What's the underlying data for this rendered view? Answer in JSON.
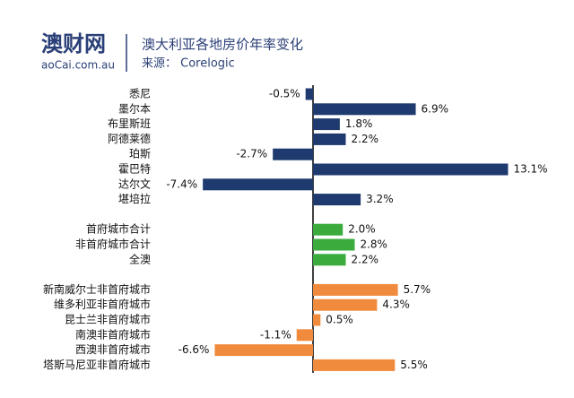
{
  "header": {
    "logo": "澳财网",
    "logo_sub": "aoCai.com.au",
    "title": "澳大利亚各地房价年率变化",
    "subtitle": "来源： Corelogic"
  },
  "chart_data": {
    "type": "bar",
    "orientation": "horizontal",
    "groups": [
      {
        "color": "#1f3a6e",
        "categories": [
          "悉尼",
          "墨尔本",
          "布里斯班",
          "阿德莱德",
          "珀斯",
          "霍巴特",
          "达尔文",
          "堪培拉"
        ],
        "values": [
          -0.5,
          6.9,
          1.8,
          2.2,
          -2.7,
          13.1,
          -7.4,
          3.2
        ],
        "value_labels": [
          "-0.5%",
          "6.9%",
          "1.8%",
          "2.2%",
          "-2.7%",
          "13.1%",
          "-7.4%",
          "3.2%"
        ]
      },
      {
        "color": "#3aab3c",
        "categories": [
          "首府城市合计",
          "非首府城市合计",
          "全澳"
        ],
        "values": [
          2.0,
          2.8,
          2.2
        ],
        "value_labels": [
          "2.0%",
          "2.8%",
          "2.2%"
        ]
      },
      {
        "color": "#f08a3c",
        "categories": [
          "新南威尔士非首府城市",
          "维多利亚非首府城市",
          "昆士兰非首府城市",
          "南澳非首府城市",
          "西澳非首府城市",
          "塔斯马尼亚非首府城市"
        ],
        "values": [
          5.7,
          4.3,
          0.5,
          -1.1,
          -6.6,
          5.5
        ],
        "value_labels": [
          "5.7%",
          "4.3%",
          "0.5%",
          "-1.1%",
          "-6.6%",
          "5.5%"
        ]
      }
    ]
  }
}
